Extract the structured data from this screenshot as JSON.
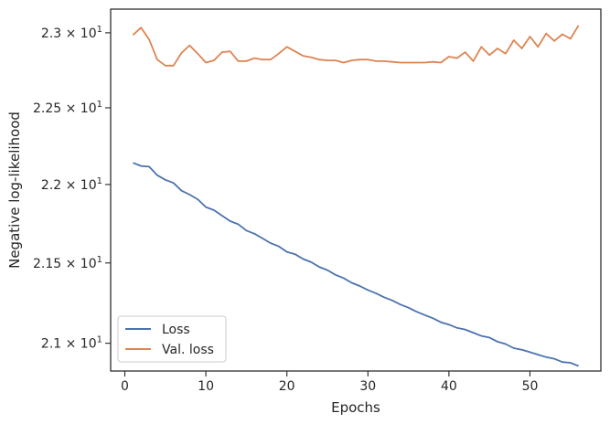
{
  "chart_data": {
    "type": "line",
    "xlabel": "Epochs",
    "ylabel": "Negative log-likelihood",
    "yscale": "log",
    "xlim": [
      -1.75,
      58.75
    ],
    "ylim": [
      20.83,
      23.16
    ],
    "xticks": [
      0,
      10,
      20,
      30,
      40,
      50
    ],
    "xtick_labels": [
      "0",
      "10",
      "20",
      "30",
      "40",
      "50"
    ],
    "yticks": [
      21.0,
      21.5,
      22.0,
      22.5,
      23.0
    ],
    "ytick_labels": [
      {
        "mant": "2.1",
        "exp": "1"
      },
      {
        "mant": "2.15",
        "exp": "1"
      },
      {
        "mant": "2.2",
        "exp": "1"
      },
      {
        "mant": "2.25",
        "exp": "1"
      },
      {
        "mant": "2.3",
        "exp": "1"
      }
    ],
    "times_sign": "×",
    "base": "10",
    "legend_position": "lower-left",
    "grid": false,
    "x": [
      1,
      2,
      3,
      4,
      5,
      6,
      7,
      8,
      9,
      10,
      11,
      12,
      13,
      14,
      15,
      16,
      17,
      18,
      19,
      20,
      21,
      22,
      23,
      24,
      25,
      26,
      27,
      28,
      29,
      30,
      31,
      32,
      33,
      34,
      35,
      36,
      37,
      38,
      39,
      40,
      41,
      42,
      43,
      44,
      45,
      46,
      47,
      48,
      49,
      50,
      51,
      52,
      53,
      54,
      55,
      56
    ],
    "series": [
      {
        "name": "Loss",
        "color": "#4c72b0",
        "values": [
          22.14,
          22.12,
          22.115,
          22.06,
          22.03,
          22.01,
          21.96,
          21.935,
          21.905,
          21.855,
          21.835,
          21.8,
          21.765,
          21.745,
          21.705,
          21.685,
          21.655,
          21.625,
          21.605,
          21.57,
          21.555,
          21.525,
          21.505,
          21.475,
          21.455,
          21.425,
          21.405,
          21.375,
          21.355,
          21.33,
          21.31,
          21.285,
          21.265,
          21.24,
          21.22,
          21.195,
          21.175,
          21.155,
          21.13,
          21.115,
          21.095,
          21.085,
          21.065,
          21.045,
          21.035,
          21.01,
          20.995,
          20.97,
          20.96,
          20.945,
          20.93,
          20.915,
          20.905,
          20.885,
          20.88,
          20.86
        ]
      },
      {
        "name": "Val. loss",
        "color": "#dd8452",
        "values": [
          22.985,
          23.035,
          22.955,
          22.82,
          22.78,
          22.78,
          22.865,
          22.915,
          22.86,
          22.8,
          22.815,
          22.87,
          22.875,
          22.81,
          22.81,
          22.83,
          22.82,
          22.82,
          22.86,
          22.905,
          22.875,
          22.845,
          22.835,
          22.82,
          22.815,
          22.815,
          22.8,
          22.815,
          22.82,
          22.82,
          22.81,
          22.81,
          22.805,
          22.8,
          22.8,
          22.8,
          22.8,
          22.805,
          22.8,
          22.84,
          22.83,
          22.87,
          22.81,
          22.905,
          22.85,
          22.895,
          22.86,
          22.95,
          22.895,
          22.975,
          22.905,
          22.995,
          22.945,
          22.99,
          22.96,
          23.05
        ]
      }
    ]
  }
}
